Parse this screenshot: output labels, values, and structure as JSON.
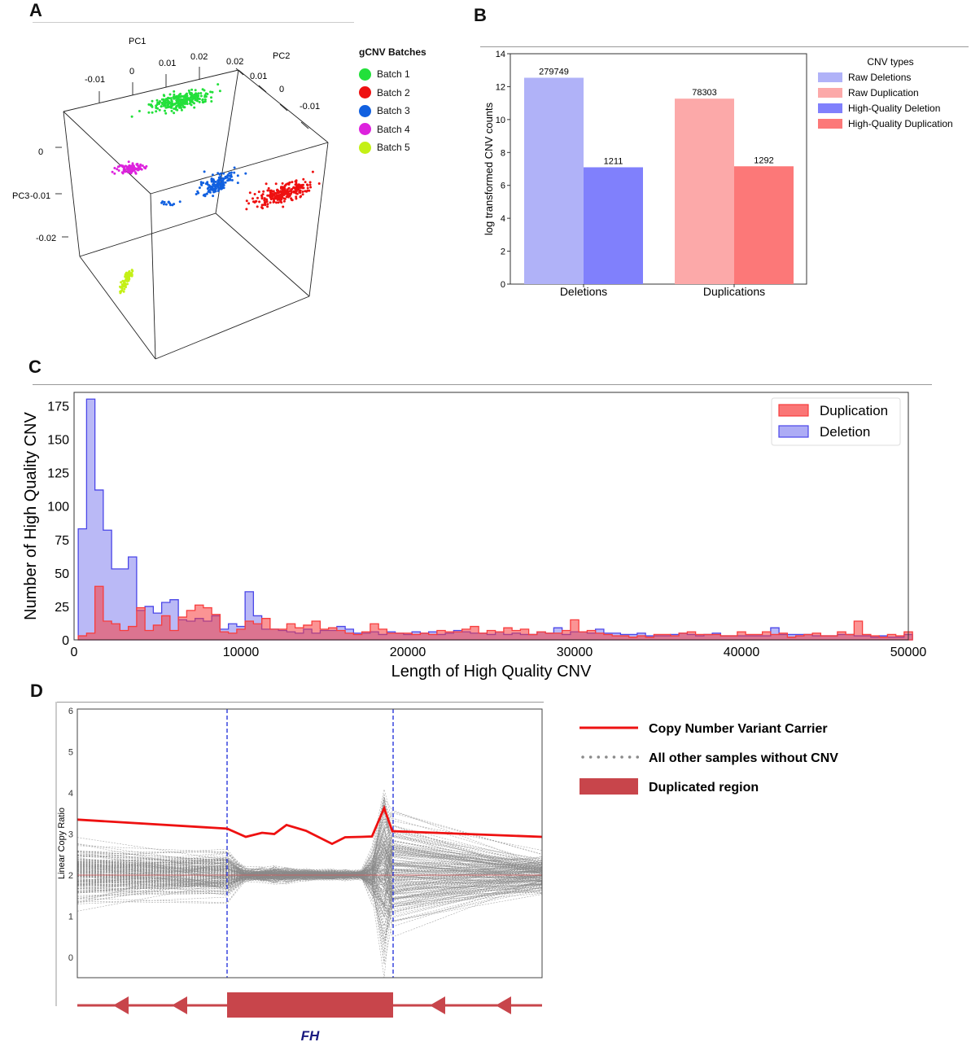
{
  "panels": {
    "a": {
      "letter": "A"
    },
    "b": {
      "letter": "B"
    },
    "c": {
      "letter": "C"
    },
    "d": {
      "letter": "D"
    }
  },
  "panel_a": {
    "axis_labels": {
      "pc1": "PC1",
      "pc2": "PC2",
      "pc3": "PC3"
    },
    "pc1_ticks": [
      "-0.01",
      "0",
      "0.01",
      "0.02"
    ],
    "pc2_ticks": [
      "0.02",
      "0.01",
      "0",
      "-0.01"
    ],
    "pc3_ticks": [
      "0",
      "-0.01",
      "-0.02"
    ],
    "legend_title": "gCNV Batches",
    "batches": [
      {
        "name": "Batch 1",
        "color": "#22e03a"
      },
      {
        "name": "Batch 2",
        "color": "#ee1111"
      },
      {
        "name": "Batch 3",
        "color": "#1160e0"
      },
      {
        "name": "Batch 4",
        "color": "#dd22dd"
      },
      {
        "name": "Batch 5",
        "color": "#c4f016"
      }
    ]
  },
  "chart_data": [
    {
      "type": "bar",
      "panel": "B",
      "categories": [
        "Deletions",
        "Duplications"
      ],
      "ylabel": "log transformed CNV counts",
      "ylim": [
        0,
        14
      ],
      "yticks": [
        0,
        2,
        4,
        6,
        8,
        10,
        12,
        14
      ],
      "legend_title": "CNV types",
      "series": [
        {
          "name": "Raw Deletions",
          "category": "Deletions",
          "value": 12.54,
          "label": "279749",
          "color": "#b0b2f8"
        },
        {
          "name": "Raw Duplication",
          "category": "Duplications",
          "value": 11.27,
          "label": "78303",
          "color": "#fca9a9"
        },
        {
          "name": "High-Quality Deletion",
          "category": "Deletions",
          "value": 7.1,
          "label": "1211",
          "color": "#8080fc"
        },
        {
          "name": "High-Quality Duplication",
          "category": "Duplications",
          "value": 7.16,
          "label": "1292",
          "color": "#fc7878"
        }
      ]
    },
    {
      "type": "area",
      "panel": "C",
      "xlabel": "Length of High Quality CNV",
      "ylabel": "Number of High Quality CNV",
      "xlim": [
        0,
        50000
      ],
      "ylim": [
        0,
        185
      ],
      "xticks": [
        0,
        10000,
        20000,
        30000,
        40000,
        50000
      ],
      "yticks": [
        0,
        25,
        50,
        75,
        100,
        125,
        150,
        175
      ],
      "bin_width": 500,
      "bin_start": 250,
      "legend": "top-right",
      "series": [
        {
          "name": "Duplication",
          "color": "#f83c3c",
          "values": [
            3,
            5,
            40,
            14,
            12,
            7,
            10,
            24,
            7,
            11,
            18,
            7,
            17,
            22,
            26,
            24,
            19,
            6,
            5,
            8,
            14,
            12,
            16,
            8,
            8,
            12,
            9,
            11,
            14,
            8,
            9,
            7,
            5,
            4,
            6,
            12,
            8,
            5,
            5,
            5,
            4,
            5,
            4,
            7,
            6,
            6,
            8,
            10,
            5,
            7,
            6,
            9,
            7,
            8,
            4,
            6,
            5,
            5,
            7,
            15,
            6,
            7,
            5,
            4,
            3,
            3,
            2,
            3,
            2,
            4,
            4,
            3,
            5,
            6,
            4,
            4,
            4,
            3,
            3,
            6,
            4,
            4,
            6,
            4,
            5,
            2,
            3,
            4,
            5,
            3,
            3,
            6,
            4,
            14,
            4,
            3,
            2,
            4,
            3,
            6
          ]
        },
        {
          "name": "Deletion",
          "color": "#4a46e8",
          "values": [
            83,
            180,
            112,
            82,
            53,
            53,
            62,
            22,
            25,
            20,
            28,
            30,
            15,
            14,
            16,
            14,
            18,
            8,
            12,
            10,
            36,
            18,
            8,
            8,
            7,
            6,
            5,
            8,
            5,
            7,
            7,
            10,
            8,
            5,
            5,
            6,
            4,
            6,
            5,
            4,
            6,
            5,
            6,
            4,
            5,
            7,
            6,
            5,
            5,
            4,
            6,
            4,
            5,
            4,
            4,
            6,
            5,
            9,
            4,
            6,
            6,
            5,
            8,
            5,
            5,
            4,
            4,
            5,
            3,
            3,
            3,
            4,
            5,
            4,
            3,
            4,
            5,
            3,
            3,
            3,
            3,
            3,
            3,
            9,
            4,
            4,
            4,
            4,
            3,
            3,
            3,
            4,
            4,
            3,
            3,
            2,
            3,
            2,
            2,
            4
          ]
        }
      ]
    }
  ],
  "panel_d": {
    "ylabel": "Linear Copy Ratio",
    "yticks": [
      "0",
      "1",
      "2",
      "3",
      "4",
      "5",
      "6"
    ],
    "legend": [
      {
        "label": "Copy Number Variant Carrier",
        "kind": "solid",
        "color": "#ee1111"
      },
      {
        "label": "All other samples without CNV",
        "kind": "dotted",
        "color": "#8a8a8a"
      },
      {
        "label": "Duplicated region",
        "kind": "box",
        "color": "#c8454b"
      }
    ],
    "gene": "FH",
    "carrier_profile": [
      3.35,
      3.13,
      2.93,
      3.03,
      3.0,
      3.22,
      3.08,
      2.76,
      2.92,
      2.93,
      2.94,
      3.63,
      3.07,
      2.93
    ]
  }
}
